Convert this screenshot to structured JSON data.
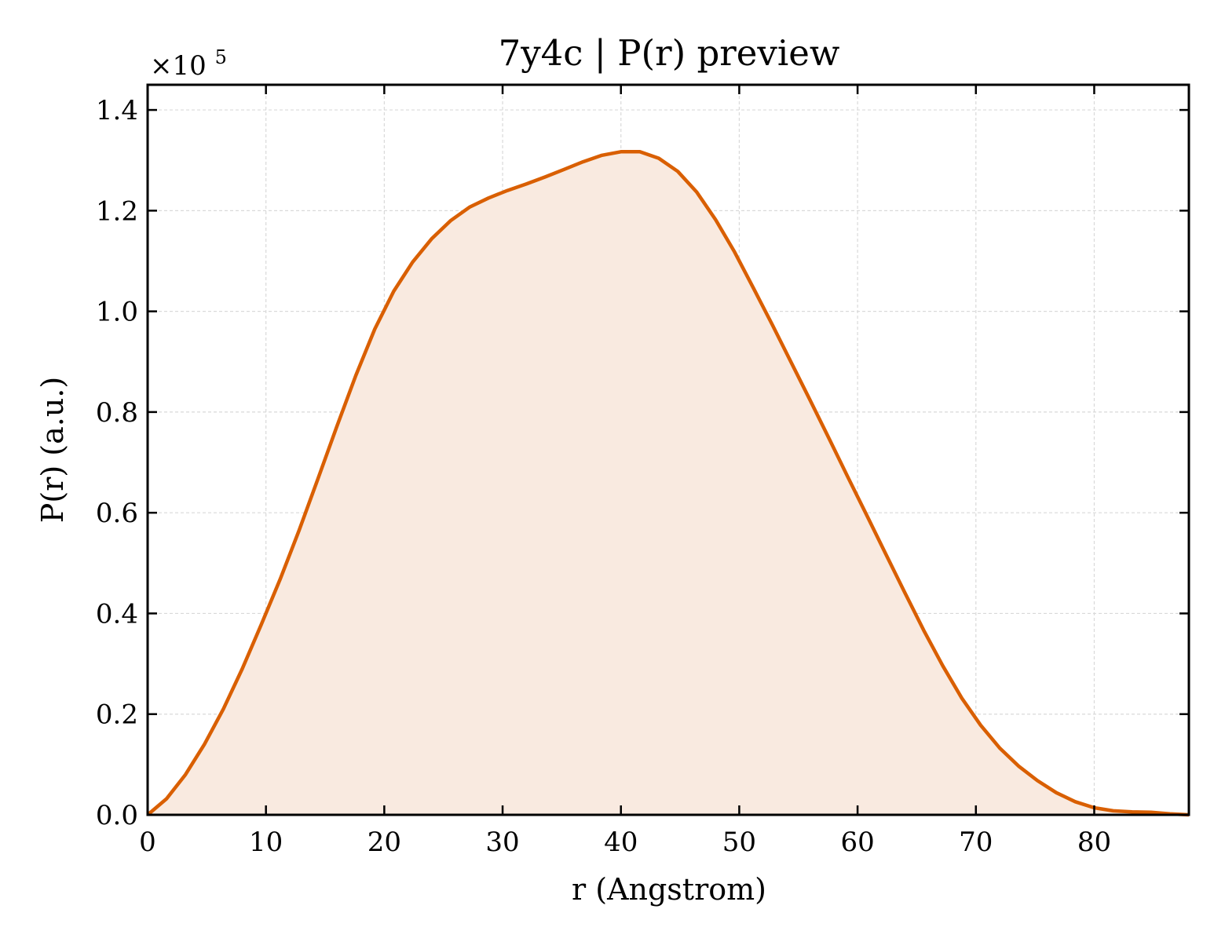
{
  "chart_data": {
    "type": "area",
    "title": "7y4c | P(r) preview",
    "xlabel": "r (Angstrom)",
    "ylabel": "P(r) (a.u.)",
    "y_multiplier_label": {
      "base": "×10",
      "exponent": "5"
    },
    "xlim": [
      0,
      88
    ],
    "ylim": [
      0,
      1.45
    ],
    "y_scale_factor": 100000,
    "x_ticks": [
      0,
      10,
      20,
      30,
      40,
      50,
      60,
      70,
      80
    ],
    "x_tick_labels": [
      "0",
      "10",
      "20",
      "30",
      "40",
      "50",
      "60",
      "70",
      "80"
    ],
    "y_ticks": [
      0,
      0.2,
      0.4,
      0.6,
      0.8,
      1.0,
      1.2,
      1.4
    ],
    "y_tick_labels": [
      "0.0",
      "0.2",
      "0.4",
      "0.6",
      "0.8",
      "1.0",
      "1.2",
      "1.4"
    ],
    "grid": true,
    "legend": "none",
    "colors": {
      "line": "#d95f02",
      "fill": "#f9eae0",
      "grid": "#d9d9d9"
    },
    "series": [
      {
        "x": [
          0,
          1.6,
          3.2,
          4.8,
          6.4,
          8.0,
          9.6,
          11.2,
          12.8,
          14.4,
          16.0,
          17.6,
          19.2,
          20.8,
          22.4,
          24.0,
          25.6,
          27.2,
          28.8,
          30.4,
          32.0,
          33.6,
          35.2,
          36.8,
          38.4,
          40.0,
          41.6,
          43.2,
          44.8,
          46.4,
          48.0,
          49.6,
          51.2,
          52.8,
          54.4,
          56.0,
          57.6,
          59.2,
          60.8,
          62.4,
          64.0,
          65.6,
          67.2,
          68.8,
          70.4,
          72.0,
          73.6,
          75.2,
          76.8,
          78.4,
          80.0,
          81.6,
          83.2,
          84.8,
          86.4,
          88.0
        ],
        "y": [
          0.0,
          0.032,
          0.08,
          0.14,
          0.21,
          0.29,
          0.378,
          0.468,
          0.565,
          0.668,
          0.772,
          0.873,
          0.965,
          1.04,
          1.098,
          1.144,
          1.18,
          1.207,
          1.225,
          1.24,
          1.253,
          1.267,
          1.282,
          1.297,
          1.31,
          1.317,
          1.317,
          1.304,
          1.278,
          1.237,
          1.182,
          1.118,
          1.046,
          0.973,
          0.898,
          0.823,
          0.747,
          0.67,
          0.594,
          0.517,
          0.441,
          0.366,
          0.296,
          0.232,
          0.178,
          0.133,
          0.097,
          0.068,
          0.044,
          0.026,
          0.014,
          0.008,
          0.006,
          0.005,
          0.002,
          0.0
        ]
      }
    ]
  }
}
